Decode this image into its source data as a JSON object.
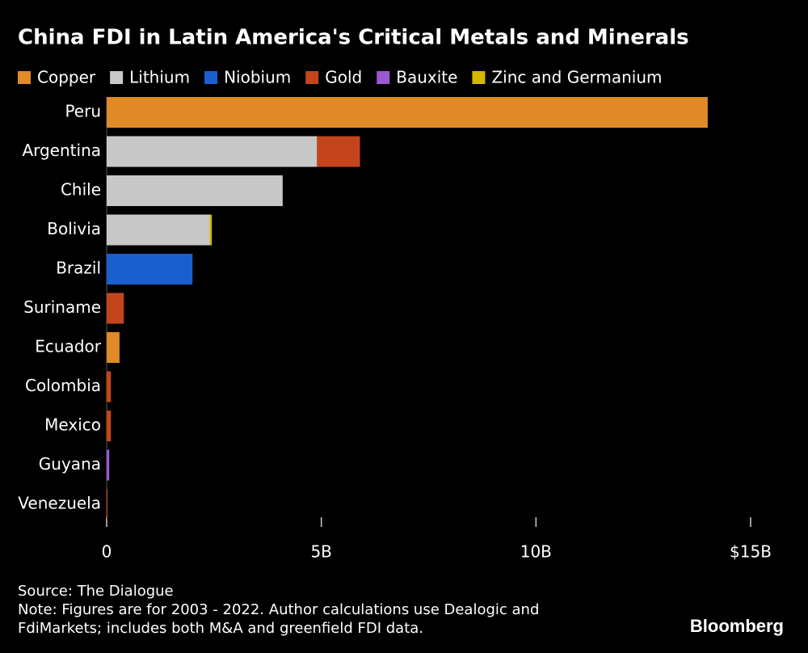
{
  "chart_data": {
    "type": "stacked-barh",
    "title": "China FDI in Latin America's Critical Metals and Minerals",
    "categories": [
      "Peru",
      "Argentina",
      "Chile",
      "Bolivia",
      "Brazil",
      "Suriname",
      "Ecuador",
      "Colombia",
      "Mexico",
      "Guyana",
      "Venezuela"
    ],
    "series": [
      {
        "name": "Copper",
        "color": "#e08a28",
        "values": [
          14.0,
          null,
          null,
          null,
          null,
          null,
          0.3,
          null,
          null,
          null,
          null
        ]
      },
      {
        "name": "Lithium",
        "color": "#c8c8c8",
        "values": [
          null,
          4.9,
          4.1,
          2.4,
          null,
          null,
          null,
          null,
          null,
          null,
          null
        ]
      },
      {
        "name": "Niobium",
        "color": "#1a5fd0",
        "values": [
          null,
          null,
          null,
          null,
          2.0,
          null,
          null,
          null,
          null,
          null,
          null
        ]
      },
      {
        "name": "Gold",
        "color": "#c4451c",
        "values": [
          null,
          1.0,
          null,
          null,
          null,
          0.4,
          null,
          0.1,
          0.1,
          null,
          0.02
        ]
      },
      {
        "name": "Bauxite",
        "color": "#9b59d0",
        "values": [
          null,
          null,
          null,
          null,
          null,
          null,
          null,
          null,
          null,
          0.06,
          null
        ]
      },
      {
        "name": "Zinc and Germanium",
        "color": "#d4b800",
        "values": [
          null,
          null,
          null,
          0.05,
          null,
          null,
          null,
          null,
          null,
          null,
          null
        ]
      }
    ],
    "xlim": [
      0,
      15
    ],
    "xticks": [
      0,
      {
        "value": 5,
        "label": "5B"
      },
      {
        "value": 10,
        "label": "10B"
      },
      {
        "value": 15,
        "label": "$15B"
      }
    ],
    "source": "Source: The Dialogue",
    "note": "Note: Figures are for 2003 - 2022. Author calculations use Dealogic and FdiMarkets; includes both M&A and greenfield FDI data.",
    "logo": "Bloomberg"
  }
}
